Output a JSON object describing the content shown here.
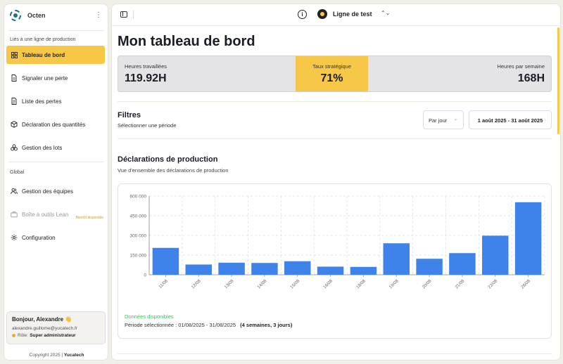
{
  "app": {
    "name": "Octen"
  },
  "sidebar": {
    "section1": "Liés à une ligne de production",
    "items1": [
      {
        "label": "Tableau de bord",
        "active": true,
        "icon": "dashboard-icon"
      },
      {
        "label": "Signaler une perte",
        "icon": "file-icon"
      },
      {
        "label": "Liste des pertes",
        "icon": "file-list-icon"
      },
      {
        "label": "Déclaration des quantités",
        "icon": "box-icon"
      },
      {
        "label": "Gestion des lots",
        "icon": "boxes-icon"
      }
    ],
    "section2": "Global",
    "items2": [
      {
        "label": "Gestion des équipes",
        "icon": "users-icon"
      },
      {
        "label": "Boîte à outils Lean",
        "icon": "briefcase-icon",
        "disabled": true,
        "badge": "Bientôt disponible"
      },
      {
        "label": "Configuration",
        "icon": "gear-icon"
      }
    ],
    "user": {
      "greeting": "Bonjour, Alexandre 👋",
      "email": "alexandre.guillome@yucatech.fr",
      "role_label": "Rôle:",
      "role": "Super administrateur"
    },
    "copyright": "Copyright 2025 |",
    "brand": "Yucatech"
  },
  "topbar": {
    "line_name": "Ligne de test"
  },
  "main": {
    "title": "Mon tableau de bord",
    "stats": [
      {
        "label": "Heures travaillées",
        "value": "119.92H"
      },
      {
        "label": "Taux stratégique",
        "value": "71%"
      },
      {
        "label": "Heures par semaine",
        "value": "168H"
      }
    ],
    "filters": {
      "title": "Filtres",
      "subtitle": "Sélectionner une période",
      "granularity": "Par jour",
      "date_range": "1 août 2025 - 31 août 2025"
    },
    "production": {
      "title": "Déclarations de production",
      "subtitle": "Vue d'ensemble des déclarations de production",
      "available": "Données disponibles",
      "period_label": "Période sélectionnée : 01/08/2025 - 31/08/2025",
      "period_extra": "(4 semaines, 3 jours)"
    }
  },
  "colors": {
    "accent": "#f7c848",
    "bar": "#3f83ea",
    "available": "#3cbf55"
  },
  "chart_data": {
    "type": "bar",
    "categories": [
      "11/08",
      "12/08",
      "13/08",
      "14/08",
      "15/08",
      "16/08",
      "18/08",
      "19/08",
      "20/08",
      "21/08",
      "22/08",
      "26/08"
    ],
    "values": [
      205000,
      78000,
      92000,
      90000,
      103000,
      62000,
      60000,
      240000,
      122000,
      165000,
      298000,
      553000
    ],
    "ylim": [
      0,
      600000
    ],
    "yticks": [
      "0",
      "150 000",
      "300 000",
      "450 000",
      "600 000"
    ],
    "ytick_values": [
      0,
      150000,
      300000,
      450000,
      600000
    ],
    "grid": true
  }
}
